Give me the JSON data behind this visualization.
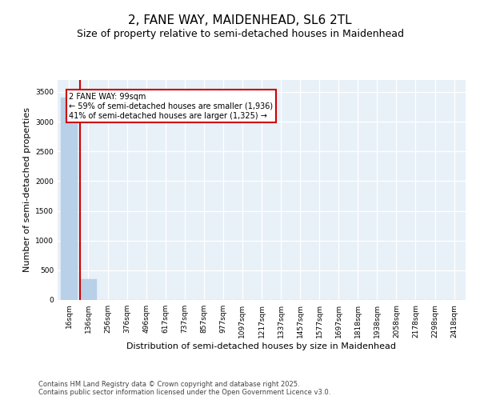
{
  "title_line1": "2, FANE WAY, MAIDENHEAD, SL6 2TL",
  "title_line2": "Size of property relative to semi-detached houses in Maidenhead",
  "xlabel": "Distribution of semi-detached houses by size in Maidenhead",
  "ylabel": "Number of semi-detached properties",
  "categories": [
    "16sqm",
    "136sqm",
    "256sqm",
    "376sqm",
    "496sqm",
    "617sqm",
    "737sqm",
    "857sqm",
    "977sqm",
    "1097sqm",
    "1217sqm",
    "1337sqm",
    "1457sqm",
    "1577sqm",
    "1697sqm",
    "1818sqm",
    "1938sqm",
    "2058sqm",
    "2178sqm",
    "2298sqm",
    "2418sqm"
  ],
  "bar_values": [
    3400,
    350,
    3,
    1,
    0,
    0,
    0,
    0,
    0,
    0,
    0,
    0,
    0,
    0,
    0,
    0,
    0,
    0,
    0,
    0,
    0
  ],
  "bar_color": "#b8d0e8",
  "bar_edge_color": "#b8d0e8",
  "red_line_color": "#cc0000",
  "red_line_xindex": 1,
  "annotation_text": "2 FANE WAY: 99sqm\n← 59% of semi-detached houses are smaller (1,936)\n41% of semi-detached houses are larger (1,325) →",
  "annotation_box_color": "white",
  "annotation_box_edge": "#cc0000",
  "ylim": [
    0,
    3700
  ],
  "yticks": [
    0,
    500,
    1000,
    1500,
    2000,
    2500,
    3000,
    3500
  ],
  "background_color": "#e8f0f8",
  "grid_color": "white",
  "footer_text": "Contains HM Land Registry data © Crown copyright and database right 2025.\nContains public sector information licensed under the Open Government Licence v3.0.",
  "title_fontsize": 11,
  "subtitle_fontsize": 9,
  "tick_fontsize": 6.5,
  "label_fontsize": 8,
  "annotation_fontsize": 7,
  "footer_fontsize": 6
}
